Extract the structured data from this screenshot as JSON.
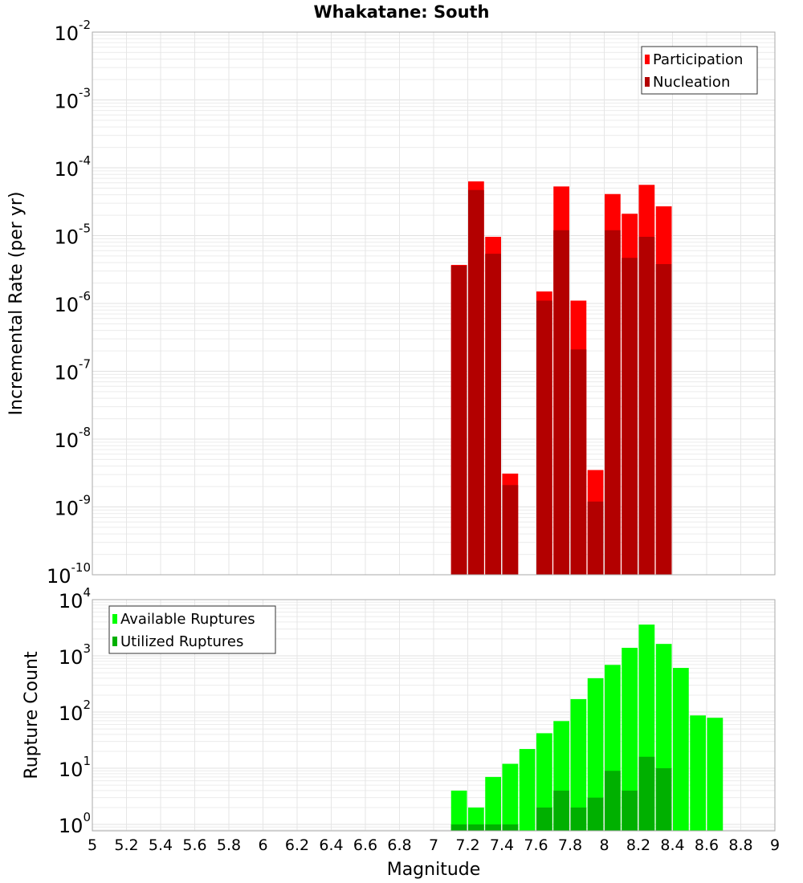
{
  "chart_data": [
    {
      "type": "bar",
      "title": "Whakatane: South",
      "xlabel": "",
      "ylabel": "Incremental Rate (per yr)",
      "yscale": "log",
      "xlim": [
        5,
        9
      ],
      "ylim": [
        1e-10,
        0.01
      ],
      "ytick_exponents": [
        -10,
        -9,
        -8,
        -7,
        -6,
        -5,
        -4,
        -3,
        -2
      ],
      "grid": true,
      "legend_position": "top-right",
      "x": [
        7.15,
        7.25,
        7.35,
        7.45,
        7.65,
        7.75,
        7.85,
        7.95,
        8.05,
        8.15,
        8.25,
        8.35
      ],
      "series": [
        {
          "name": "Participation",
          "color": "#ff0000",
          "values": [
            3.7e-06,
            6.3e-05,
            9.6e-06,
            3.1e-09,
            1.5e-06,
            5.3e-05,
            1.1e-06,
            3.5e-09,
            4.1e-05,
            2.1e-05,
            5.6e-05,
            2.7e-05
          ]
        },
        {
          "name": "Nucleation",
          "color": "#b30000",
          "values": [
            3.6e-06,
            4.7e-05,
            5.4e-06,
            2.1e-09,
            1.1e-06,
            1.2e-05,
            2.1e-07,
            1.2e-09,
            1.2e-05,
            4.7e-06,
            9.6e-06,
            3.8e-06
          ]
        }
      ]
    },
    {
      "type": "bar",
      "xlabel": "Magnitude",
      "ylabel": "Rupture Count",
      "yscale": "log",
      "xlim": [
        5,
        9
      ],
      "ylim": [
        0.77,
        10000
      ],
      "ytick_exponents": [
        0,
        1,
        2,
        3,
        4
      ],
      "xticks": [
        "5",
        "5.2",
        "5.4",
        "5.6",
        "5.8",
        "6",
        "6.2",
        "6.4",
        "6.6",
        "6.8",
        "7",
        "7.2",
        "7.4",
        "7.6",
        "7.8",
        "8",
        "8.2",
        "8.4",
        "8.6",
        "8.8",
        "9"
      ],
      "grid": true,
      "legend_position": "top-left",
      "x": [
        7.15,
        7.25,
        7.35,
        7.45,
        7.55,
        7.65,
        7.75,
        7.85,
        7.95,
        8.05,
        8.15,
        8.25,
        8.35,
        8.45,
        8.55,
        8.65
      ],
      "series": [
        {
          "name": "Available Ruptures",
          "color": "#00ff00",
          "values": [
            4,
            2,
            7,
            12,
            22,
            42,
            69,
            170,
            400,
            690,
            1390,
            3600,
            1630,
            610,
            87,
            79
          ]
        },
        {
          "name": "Utilized Ruptures",
          "color": "#00b000",
          "values": [
            1,
            1,
            1,
            1,
            0,
            2,
            4,
            2,
            3,
            9,
            4,
            16,
            10,
            0,
            0,
            0
          ]
        }
      ]
    }
  ]
}
